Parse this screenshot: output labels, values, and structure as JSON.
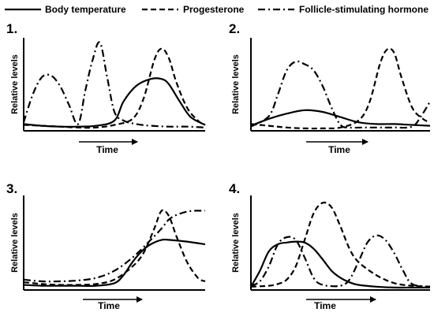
{
  "legend": {
    "placement": "top",
    "items": [
      {
        "label": "Body temperature",
        "style": "solid"
      },
      {
        "label": "Progesterone",
        "style": "dashed"
      },
      {
        "label": "Follicle-stimulating hormone",
        "style": "dashdot"
      }
    ]
  },
  "chart_data": [
    {
      "type": "line",
      "panel_label": "1.",
      "xlabel": "Time",
      "ylabel": "Relative levels",
      "xlim": [
        0,
        1
      ],
      "ylim": [
        0,
        1
      ],
      "grid": false,
      "series": [
        {
          "name": "Body temperature",
          "style": "solid",
          "x": [
            0,
            0.1,
            0.2,
            0.3,
            0.4,
            0.5,
            0.55,
            0.62,
            0.7,
            0.76,
            0.8,
            0.86,
            0.92,
            1.0
          ],
          "y": [
            0.06,
            0.04,
            0.03,
            0.03,
            0.04,
            0.1,
            0.32,
            0.5,
            0.58,
            0.58,
            0.52,
            0.32,
            0.14,
            0.05
          ]
        },
        {
          "name": "Progesterone",
          "style": "dashed",
          "x": [
            0,
            0.1,
            0.2,
            0.3,
            0.4,
            0.5,
            0.6,
            0.66,
            0.72,
            0.76,
            0.8,
            0.84,
            0.9,
            0.96,
            1.0
          ],
          "y": [
            0.05,
            0.04,
            0.03,
            0.02,
            0.02,
            0.05,
            0.12,
            0.35,
            0.8,
            0.93,
            0.82,
            0.55,
            0.25,
            0.1,
            0.05
          ]
        },
        {
          "name": "Follicle-stimulating hormone",
          "style": "dashdot",
          "x": [
            0,
            0.05,
            0.1,
            0.15,
            0.2,
            0.25,
            0.3,
            0.34,
            0.38,
            0.42,
            0.46,
            0.5,
            0.55,
            0.62,
            0.7,
            0.8,
            0.9,
            1.0
          ],
          "y": [
            0.08,
            0.4,
            0.6,
            0.62,
            0.5,
            0.28,
            0.06,
            0.45,
            0.8,
            1.0,
            0.6,
            0.2,
            0.1,
            0.06,
            0.04,
            0.03,
            0.03,
            0.02
          ]
        }
      ]
    },
    {
      "type": "line",
      "panel_label": "2.",
      "xlabel": "Time",
      "ylabel": "Relative levels",
      "xlim": [
        0,
        1
      ],
      "ylim": [
        0,
        1
      ],
      "grid": false,
      "series": [
        {
          "name": "Body temperature",
          "style": "solid",
          "x": [
            0,
            0.1,
            0.2,
            0.3,
            0.4,
            0.5,
            0.6,
            0.7,
            0.8,
            0.9,
            1.0
          ],
          "y": [
            0.04,
            0.12,
            0.18,
            0.22,
            0.2,
            0.14,
            0.08,
            0.06,
            0.06,
            0.05,
            0.04
          ]
        },
        {
          "name": "Progesterone",
          "style": "dashed",
          "x": [
            0,
            0.1,
            0.2,
            0.3,
            0.4,
            0.5,
            0.6,
            0.66,
            0.72,
            0.76,
            0.8,
            0.84,
            0.9,
            0.96,
            1.0
          ],
          "y": [
            0.06,
            0.04,
            0.02,
            0.01,
            0.01,
            0.02,
            0.1,
            0.3,
            0.75,
            0.92,
            0.88,
            0.6,
            0.25,
            0.12,
            0.08
          ]
        },
        {
          "name": "Follicle-stimulating hormone",
          "style": "dashdot",
          "x": [
            0,
            0.1,
            0.15,
            0.2,
            0.25,
            0.3,
            0.35,
            0.4,
            0.45,
            0.5,
            0.55,
            0.62,
            0.7,
            0.8,
            0.9,
            0.95,
            1.0
          ],
          "y": [
            0.03,
            0.15,
            0.4,
            0.68,
            0.78,
            0.75,
            0.68,
            0.5,
            0.25,
            0.05,
            0.02,
            0.02,
            0.02,
            0.02,
            0.03,
            0.15,
            0.32
          ]
        }
      ]
    },
    {
      "type": "line",
      "panel_label": "3.",
      "xlabel": "Time",
      "ylabel": "Relative levels",
      "xlim": [
        0,
        1
      ],
      "ylim": [
        0,
        1
      ],
      "grid": false,
      "series": [
        {
          "name": "Body temperature",
          "style": "solid",
          "x": [
            0,
            0.1,
            0.2,
            0.3,
            0.4,
            0.5,
            0.55,
            0.6,
            0.65,
            0.7,
            0.76,
            0.8,
            0.9,
            1.0
          ],
          "y": [
            0.04,
            0.03,
            0.03,
            0.03,
            0.03,
            0.06,
            0.15,
            0.3,
            0.42,
            0.5,
            0.55,
            0.55,
            0.53,
            0.5
          ]
        },
        {
          "name": "Progesterone",
          "style": "dashed",
          "x": [
            0,
            0.1,
            0.2,
            0.3,
            0.4,
            0.5,
            0.6,
            0.66,
            0.72,
            0.76,
            0.8,
            0.84,
            0.9,
            0.96,
            1.0
          ],
          "y": [
            0.07,
            0.05,
            0.04,
            0.04,
            0.05,
            0.1,
            0.25,
            0.4,
            0.68,
            0.88,
            0.82,
            0.6,
            0.3,
            0.12,
            0.08
          ]
        },
        {
          "name": "Follicle-stimulating hormone",
          "style": "dashdot",
          "x": [
            0,
            0.1,
            0.2,
            0.3,
            0.4,
            0.5,
            0.6,
            0.7,
            0.76,
            0.8,
            0.84,
            0.9,
            0.95,
            1.0
          ],
          "y": [
            0.1,
            0.08,
            0.08,
            0.09,
            0.12,
            0.2,
            0.35,
            0.55,
            0.68,
            0.78,
            0.83,
            0.87,
            0.88,
            0.88
          ]
        }
      ]
    },
    {
      "type": "line",
      "panel_label": "4.",
      "xlabel": "Time",
      "ylabel": "Relative levels",
      "xlim": [
        0,
        1
      ],
      "ylim": [
        0,
        1
      ],
      "grid": false,
      "series": [
        {
          "name": "Body temperature",
          "style": "solid",
          "x": [
            0,
            0.05,
            0.1,
            0.15,
            0.2,
            0.25,
            0.3,
            0.35,
            0.4,
            0.45,
            0.5,
            0.55,
            0.6,
            0.7,
            0.8,
            0.9,
            1.0
          ],
          "y": [
            0.02,
            0.2,
            0.42,
            0.5,
            0.52,
            0.53,
            0.52,
            0.45,
            0.33,
            0.2,
            0.12,
            0.07,
            0.04,
            0.02,
            0.01,
            0.01,
            0.01
          ]
        },
        {
          "name": "Progesterone",
          "style": "dashed",
          "x": [
            0,
            0.1,
            0.15,
            0.2,
            0.25,
            0.3,
            0.35,
            0.4,
            0.45,
            0.5,
            0.55,
            0.6,
            0.7,
            0.8,
            0.9,
            1.0
          ],
          "y": [
            0.02,
            0.03,
            0.05,
            0.1,
            0.25,
            0.55,
            0.85,
            0.97,
            0.92,
            0.7,
            0.45,
            0.3,
            0.15,
            0.06,
            0.03,
            0.02
          ]
        },
        {
          "name": "Follicle-stimulating hormone",
          "style": "dashdot",
          "x": [
            0,
            0.05,
            0.1,
            0.15,
            0.2,
            0.25,
            0.3,
            0.35,
            0.4,
            0.5,
            0.55,
            0.6,
            0.65,
            0.7,
            0.75,
            0.8,
            0.85,
            0.9,
            1.0
          ],
          "y": [
            0.03,
            0.08,
            0.25,
            0.5,
            0.58,
            0.55,
            0.35,
            0.12,
            0.04,
            0.03,
            0.1,
            0.3,
            0.52,
            0.6,
            0.55,
            0.4,
            0.2,
            0.05,
            0.02
          ]
        }
      ]
    }
  ]
}
